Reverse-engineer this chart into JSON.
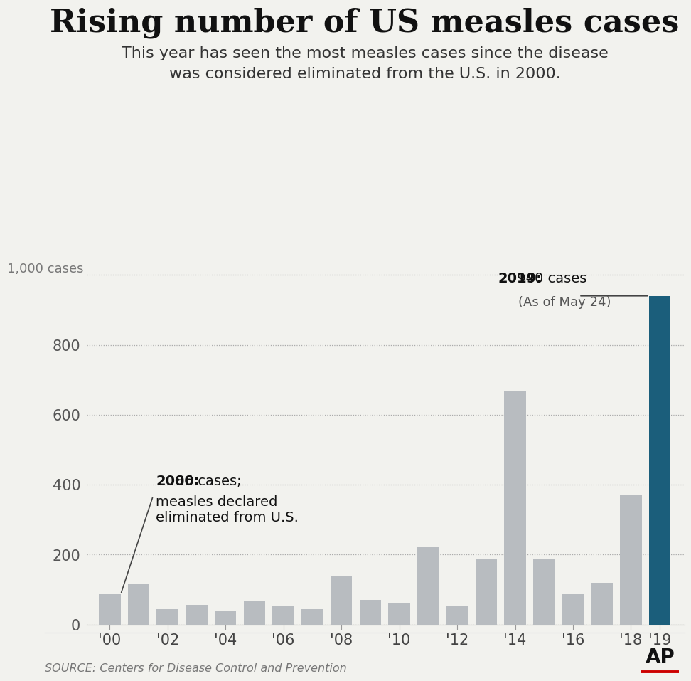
{
  "title": "Rising number of US measles cases",
  "subtitle": "This year has seen the most measles cases since the disease\nwas considered eliminated from the U.S. in 2000.",
  "years": [
    2000,
    2001,
    2002,
    2003,
    2004,
    2005,
    2006,
    2007,
    2008,
    2009,
    2010,
    2011,
    2012,
    2013,
    2014,
    2015,
    2016,
    2017,
    2018,
    2019
  ],
  "values": [
    86,
    116,
    44,
    56,
    37,
    66,
    55,
    43,
    140,
    71,
    63,
    220,
    55,
    187,
    667,
    188,
    86,
    120,
    372,
    940
  ],
  "bar_color_default": "#b8bcc0",
  "bar_color_highlight": "#1b5e7b",
  "highlight_year": 2019,
  "ylim": [
    0,
    1050
  ],
  "yticks": [
    0,
    200,
    400,
    600,
    800,
    1000
  ],
  "ytick_labels": [
    "0",
    "200",
    "400",
    "600",
    "800",
    ""
  ],
  "ylabel_top": "1,000 cases",
  "xtick_labels": [
    "'00",
    "'02",
    "'04",
    "'06",
    "'08",
    "'10",
    "'12",
    "'14",
    "'16",
    "'18",
    "'19"
  ],
  "xtick_years": [
    2000,
    2002,
    2004,
    2006,
    2008,
    2010,
    2012,
    2014,
    2016,
    2018,
    2019
  ],
  "source_text": "SOURCE: Centers for Disease Control and Prevention",
  "background_color": "#f2f2ee",
  "title_fontsize": 32,
  "subtitle_fontsize": 16,
  "tick_fontsize": 15,
  "ap_color": "#cc0000"
}
